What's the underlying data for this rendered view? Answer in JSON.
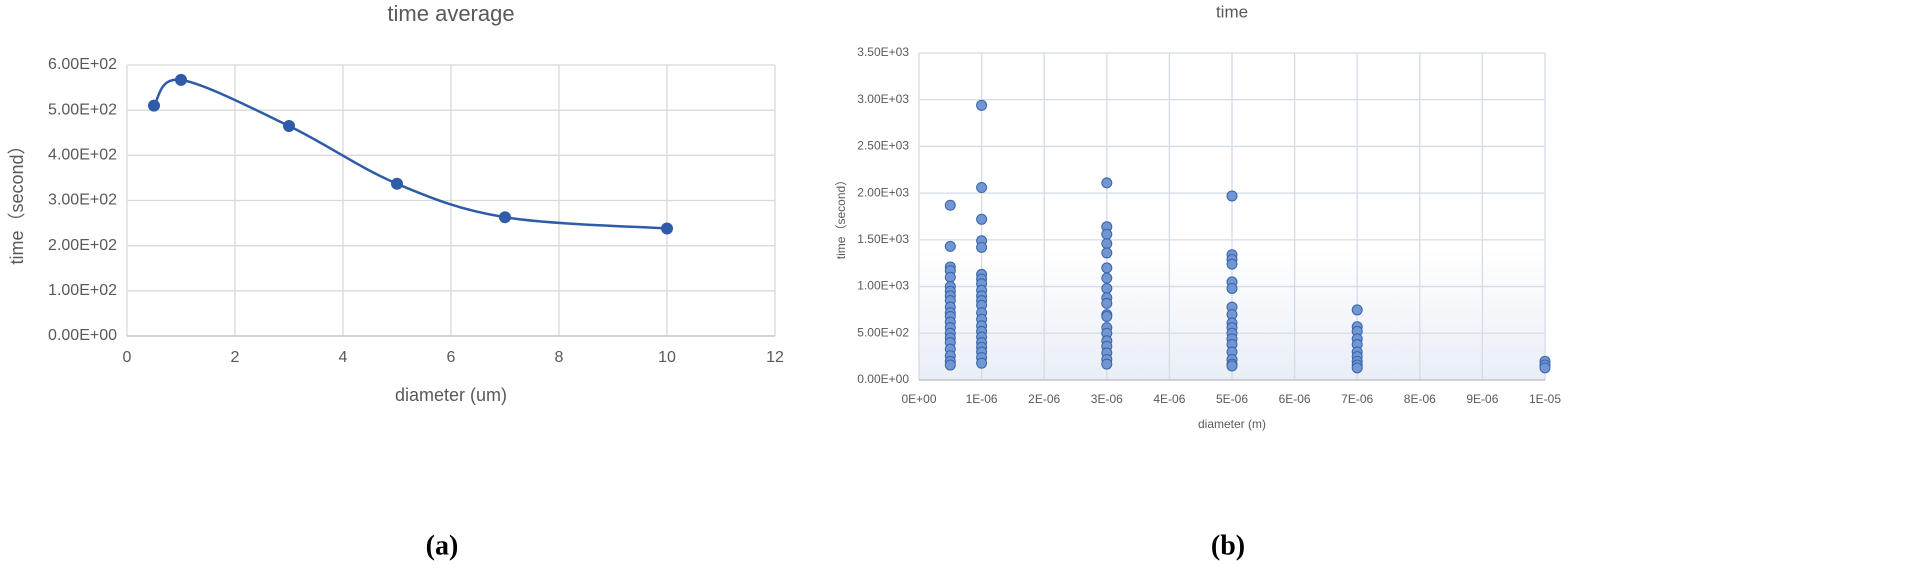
{
  "chart_data": [
    {
      "type": "line",
      "title": "time average",
      "x_label": "diameter (um)",
      "y_label": "time（second）",
      "caption": "(a)",
      "x": [
        0.5,
        1,
        3,
        5,
        7,
        10
      ],
      "values": [
        510,
        567,
        465,
        337,
        263,
        238
      ],
      "color": "#2f5ba8",
      "smooth": true,
      "grid": true,
      "xlim": [
        0,
        12
      ],
      "xticks": [
        0,
        2,
        4,
        6,
        8,
        10,
        12
      ],
      "ylim": [
        0,
        600
      ],
      "yticks": [
        {
          "value": 0,
          "label": "0.00E+00"
        },
        {
          "value": 100,
          "label": "1.00E+02"
        },
        {
          "value": 200,
          "label": "2.00E+02"
        },
        {
          "value": 300,
          "label": "3.00E+02"
        },
        {
          "value": 400,
          "label": "4.00E+02"
        },
        {
          "value": 500,
          "label": "5.00E+02"
        },
        {
          "value": 600,
          "label": "6.00E+02"
        }
      ]
    },
    {
      "type": "scatter",
      "title": "time",
      "x_label": "diameter (m)",
      "y_label": "time（second）",
      "caption": "(b)",
      "x": [
        5e-07,
        5e-07,
        5e-07,
        5e-07,
        5e-07,
        5e-07,
        5e-07,
        5e-07,
        5e-07,
        5e-07,
        5e-07,
        5e-07,
        5e-07,
        5e-07,
        5e-07,
        5e-07,
        5e-07,
        5e-07,
        5e-07,
        5e-07,
        5e-07,
        1e-06,
        1e-06,
        1e-06,
        1e-06,
        1e-06,
        1e-06,
        1e-06,
        1e-06,
        1e-06,
        1e-06,
        1e-06,
        1e-06,
        1e-06,
        1e-06,
        1e-06,
        1e-06,
        1e-06,
        1e-06,
        1e-06,
        1e-06,
        1e-06,
        1e-06,
        3e-06,
        3e-06,
        3e-06,
        3e-06,
        3e-06,
        3e-06,
        3e-06,
        3e-06,
        3e-06,
        3e-06,
        3e-06,
        3e-06,
        3e-06,
        3e-06,
        3e-06,
        3e-06,
        3e-06,
        3e-06,
        3e-06,
        5e-06,
        5e-06,
        5e-06,
        5e-06,
        5e-06,
        5e-06,
        5e-06,
        5e-06,
        5e-06,
        5e-06,
        5e-06,
        5e-06,
        5e-06,
        5e-06,
        5e-06,
        5e-06,
        5e-06,
        7e-06,
        7e-06,
        7e-06,
        7e-06,
        7e-06,
        7e-06,
        7e-06,
        7e-06,
        7e-06,
        7e-06,
        1e-05,
        1e-05,
        1e-05
      ],
      "values": [
        1870,
        1430,
        1210,
        1170,
        1100,
        1000,
        950,
        900,
        850,
        780,
        720,
        680,
        620,
        560,
        500,
        450,
        400,
        330,
        260,
        200,
        160,
        2940,
        2060,
        1720,
        1490,
        1420,
        1130,
        1080,
        1030,
        960,
        900,
        850,
        800,
        720,
        650,
        580,
        520,
        460,
        400,
        350,
        300,
        240,
        180,
        2110,
        1640,
        1560,
        1460,
        1360,
        1200,
        1090,
        980,
        880,
        820,
        700,
        680,
        560,
        500,
        420,
        360,
        290,
        220,
        170,
        1970,
        1340,
        1290,
        1240,
        1050,
        980,
        780,
        700,
        610,
        560,
        500,
        440,
        380,
        300,
        220,
        170,
        150,
        750,
        570,
        520,
        440,
        380,
        300,
        250,
        200,
        160,
        130,
        200,
        160,
        130
      ],
      "color": "#7096d4",
      "grid": true,
      "xlim": [
        0,
        1e-05
      ],
      "xticks": [
        {
          "value": 0,
          "label": "0E+00"
        },
        {
          "value": 1e-06,
          "label": "1E-06"
        },
        {
          "value": 2e-06,
          "label": "2E-06"
        },
        {
          "value": 3e-06,
          "label": "3E-06"
        },
        {
          "value": 4e-06,
          "label": "4E-06"
        },
        {
          "value": 5e-06,
          "label": "5E-06"
        },
        {
          "value": 6e-06,
          "label": "6E-06"
        },
        {
          "value": 7e-06,
          "label": "7E-06"
        },
        {
          "value": 8e-06,
          "label": "8E-06"
        },
        {
          "value": 9e-06,
          "label": "9E-06"
        },
        {
          "value": 1e-05,
          "label": "1E-05"
        }
      ],
      "ylim": [
        0,
        3500
      ],
      "yticks": [
        {
          "value": 0,
          "label": "0.00E+00"
        },
        {
          "value": 500,
          "label": "5.00E+02"
        },
        {
          "value": 1000,
          "label": "1.00E+03"
        },
        {
          "value": 1500,
          "label": "1.50E+03"
        },
        {
          "value": 2000,
          "label": "2.00E+03"
        },
        {
          "value": 2500,
          "label": "2.50E+03"
        },
        {
          "value": 3000,
          "label": "3.00E+03"
        },
        {
          "value": 3500,
          "label": "3.50E+03"
        }
      ]
    }
  ]
}
